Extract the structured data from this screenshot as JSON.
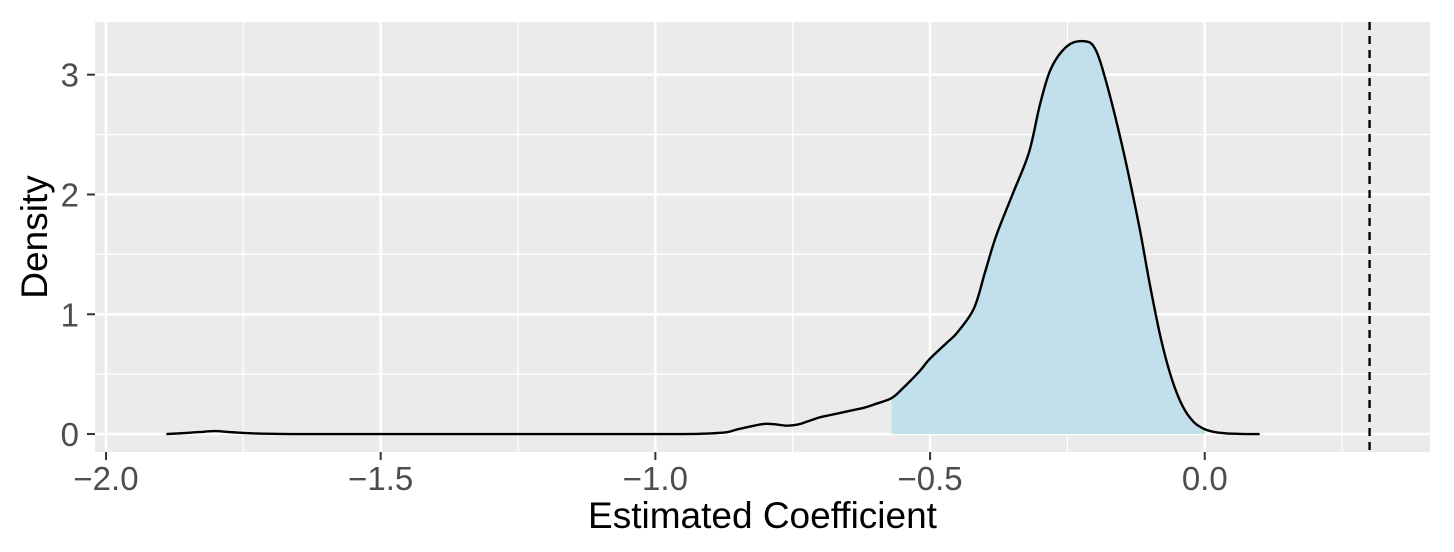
{
  "chart_data": {
    "type": "area",
    "title": "",
    "xlabel": "Estimated Coefficient",
    "ylabel": "Density",
    "xlim": [
      -2.02,
      0.41
    ],
    "ylim": [
      -0.15,
      3.44
    ],
    "x_ticks": [
      {
        "value": -2.0,
        "label": "−2.0"
      },
      {
        "value": -1.5,
        "label": "−1.5"
      },
      {
        "value": -1.0,
        "label": "−1.0"
      },
      {
        "value": -0.5,
        "label": "−0.5"
      },
      {
        "value": 0.0,
        "label": "0.0"
      }
    ],
    "x_minor_ticks": [
      -1.75,
      -1.25,
      -0.75,
      -0.25,
      0.25
    ],
    "y_ticks": [
      {
        "value": 0,
        "label": "0"
      },
      {
        "value": 1,
        "label": "1"
      },
      {
        "value": 2,
        "label": "2"
      },
      {
        "value": 3,
        "label": "3"
      }
    ],
    "y_minor_ticks": [
      0.5,
      1.5,
      2.5
    ],
    "grid": true,
    "series": [
      {
        "x": [
          -1.89,
          -1.85,
          -1.82,
          -1.8,
          -1.77,
          -1.73,
          -1.65,
          -1.5,
          -1.3,
          -1.1,
          -0.95,
          -0.9,
          -0.87,
          -0.85,
          -0.82,
          -0.8,
          -0.78,
          -0.76,
          -0.74,
          -0.72,
          -0.7,
          -0.68,
          -0.65,
          -0.62,
          -0.6,
          -0.57,
          -0.55,
          -0.52,
          -0.5,
          -0.47,
          -0.45,
          -0.42,
          -0.4,
          -0.38,
          -0.35,
          -0.32,
          -0.3,
          -0.28,
          -0.25,
          -0.22,
          -0.2,
          -0.18,
          -0.15,
          -0.12,
          -0.1,
          -0.08,
          -0.06,
          -0.04,
          -0.02,
          0.0,
          0.02,
          0.04,
          0.06,
          0.08,
          0.1
        ],
        "y": [
          0.0,
          0.01,
          0.02,
          0.025,
          0.015,
          0.005,
          0.0,
          0.0,
          0.0,
          0.0,
          0.0,
          0.005,
          0.015,
          0.04,
          0.07,
          0.085,
          0.08,
          0.07,
          0.08,
          0.11,
          0.14,
          0.16,
          0.19,
          0.22,
          0.25,
          0.3,
          0.38,
          0.52,
          0.63,
          0.76,
          0.85,
          1.05,
          1.35,
          1.65,
          2.0,
          2.35,
          2.75,
          3.05,
          3.24,
          3.28,
          3.22,
          2.95,
          2.4,
          1.75,
          1.25,
          0.8,
          0.46,
          0.23,
          0.1,
          0.04,
          0.015,
          0.005,
          0.002,
          0.0,
          0.0
        ],
        "line_color": "#000000"
      }
    ],
    "shaded_region": {
      "x_from": -0.57,
      "x_to": 0.0,
      "color": "#c2dfec"
    },
    "vline": {
      "x": 0.3,
      "style": "dashed",
      "color": "#000000"
    },
    "panel_background": "#ebebeb",
    "grid_color": "#ffffff"
  }
}
